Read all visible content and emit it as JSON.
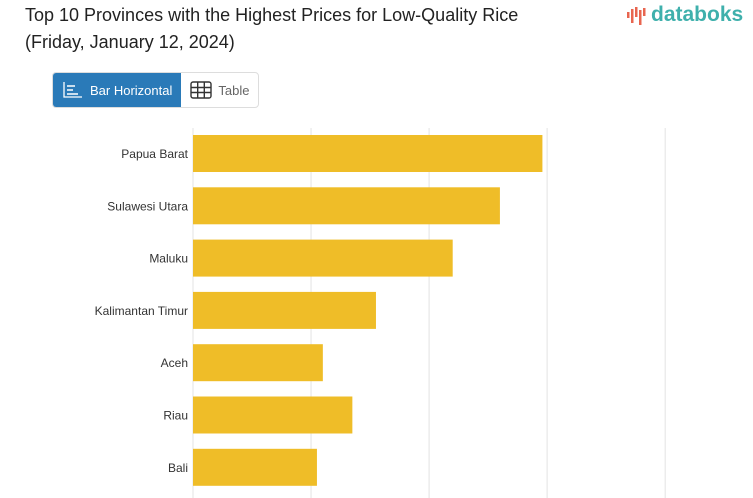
{
  "header": {
    "title_line1": "Top 10 Provinces with the Highest Prices for Low-Quality Rice",
    "title_line2": "(Friday, January 12, 2024)",
    "logo_text": "databoks"
  },
  "tabs": [
    {
      "label": "Bar Horizontal",
      "icon": "bar-chart-icon",
      "active": true
    },
    {
      "label": "Table",
      "icon": "table-icon",
      "active": false
    }
  ],
  "colors": {
    "bar": "#efbd28",
    "accent": "#2a7ab8",
    "logo": "#3fb0ac"
  },
  "chart_data": {
    "type": "bar",
    "orientation": "horizontal",
    "title": "Top 10 Provinces with the Highest Prices for Low-Quality Rice (Friday, January 12, 2024)",
    "categories": [
      "Papua Barat",
      "Sulawesi Utara",
      "Maluku",
      "Kalimantan Timur",
      "Aceh",
      "Riau",
      "Bali"
    ],
    "values": [
      2.96,
      2.6,
      2.2,
      1.55,
      1.1,
      1.35,
      1.05
    ],
    "value_units": "relative (gridline intervals; axis tick labels not visible)",
    "xlim": [
      0,
      4.6
    ],
    "grid": true,
    "gridlines": [
      0,
      1,
      2,
      3,
      4
    ],
    "xlabel": "",
    "ylabel": ""
  }
}
